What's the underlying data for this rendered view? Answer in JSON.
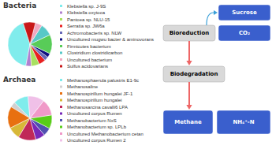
{
  "chart_data": [
    {
      "type": "pie",
      "title": "Bacteria",
      "categories": [
        "Klebsiella sp. J-9S",
        "Klebsiella oxytoca",
        "Pantoea sp. NLU-15",
        "Serratia sp. JW6a",
        "Achromobacteris sp. NLW",
        "Uncultured mugwu bacter & aminovorans",
        "Firmicutes bacterium",
        "Clostridium clostridicarbon",
        "Uncultured bacterium",
        "Sulfus acidovarians"
      ],
      "values": [
        42,
        4,
        6,
        5,
        3,
        3,
        14,
        9,
        5,
        9
      ],
      "colors": [
        "#80ecec",
        "#b080d0",
        "#a8e060",
        "#e82020",
        "#6868b8",
        "#101080",
        "#58cc58",
        "#58c8c8",
        "#f0a8c0",
        "#c81818"
      ],
      "legend": "right"
    },
    {
      "type": "pie",
      "title": "Archaea",
      "categories": [
        "Methanosphaerula palustris E1-9c",
        "Methanosaline",
        "Methanospirillum hungalei JF-1",
        "Methanospirillum hungalei",
        "Methanosarcina cavalli6 LPA",
        "Uncultured corpus Rumen",
        "Methanobacterium NxS",
        "Methanobacterium sp. LPLb",
        "Uncultured Methanobacterium cetan",
        "Uncultured corpus Rumen 2"
      ],
      "values": [
        11,
        4,
        16,
        9,
        13,
        7,
        6,
        10,
        12,
        12
      ],
      "colors": [
        "#80ecec",
        "#d0d0d0",
        "#e87010",
        "#d8b838",
        "#c02858",
        "#7828b8",
        "#5050b0",
        "#58cc18",
        "#f098c8",
        "#f0c0e8"
      ],
      "legend": "right"
    },
    {
      "type": "flow",
      "annotations": [
        "Sucrose",
        "Bioreduction",
        "CO₂",
        "Biodegradation",
        "Methane",
        "NH₄⁺-N"
      ]
    }
  ]
}
